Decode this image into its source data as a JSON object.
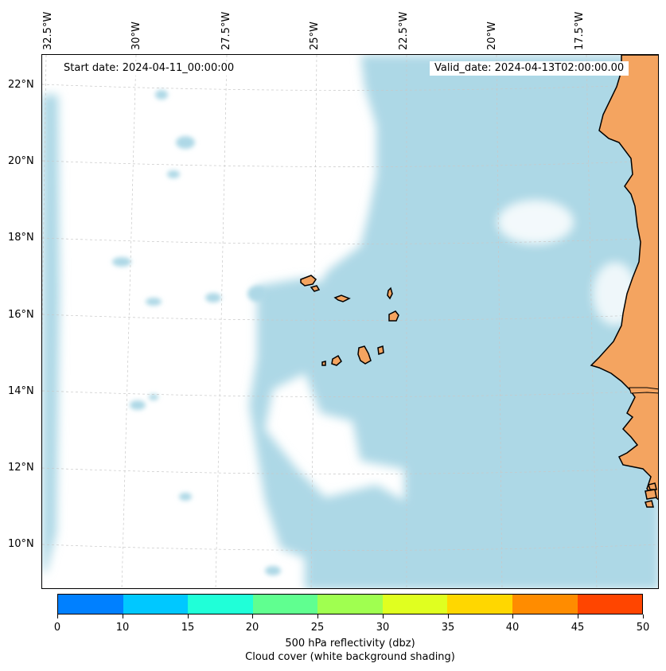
{
  "map": {
    "start_date": "Start date: 2024-04-11_00:00:00",
    "valid_date": "Valid_date: 2024-04-13T02:00:00.00",
    "longitude_labels": [
      "32.5°W",
      "30°W",
      "27.5°W",
      "25°W",
      "22.5°W",
      "20°W",
      "17.5°W"
    ],
    "latitude_labels": [
      "22°N",
      "20°N",
      "18°N",
      "16°N",
      "14°N",
      "12°N",
      "10°N"
    ],
    "land_color": "#f4a460",
    "cloud_color": "#add8e6",
    "gridlines": true
  },
  "colorbar": {
    "ticks": [
      "0",
      "10",
      "15",
      "20",
      "25",
      "30",
      "35",
      "40",
      "45",
      "50"
    ],
    "colors": [
      "#0080ff",
      "#00c8ff",
      "#20ffd8",
      "#60ff90",
      "#a0ff50",
      "#e0ff20",
      "#ffd700",
      "#ff8c00",
      "#ff4500"
    ],
    "label_line1": "500 hPa reflectivity (dbz)",
    "label_line2": "Cloud cover (white background shading)"
  }
}
